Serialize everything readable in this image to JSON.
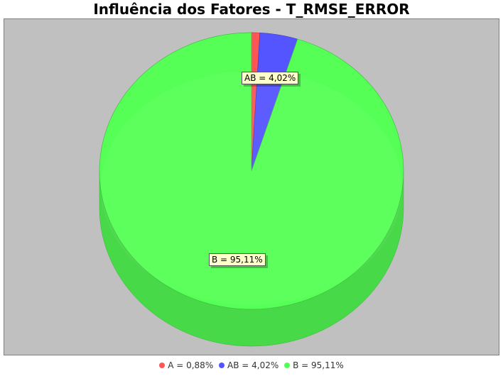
{
  "chart_data": {
    "type": "pie",
    "title": "Influência dos Fatores - T_RMSE_ERROR",
    "slices": [
      {
        "label": "A",
        "value": 0.88,
        "display": "A = 0,88%",
        "color": "#ff5555",
        "data_label": ""
      },
      {
        "label": "AB",
        "value": 4.02,
        "display": "AB = 4,02%",
        "color": "#5555ff",
        "data_label": "AB = 4,02%"
      },
      {
        "label": "B",
        "value": 95.11,
        "display": "B = 95,11%",
        "color": "#55ff55",
        "data_label": "B = 95,11%"
      }
    ],
    "legend_position": "bottom",
    "background": "#c0c0c0",
    "style": "3d"
  }
}
